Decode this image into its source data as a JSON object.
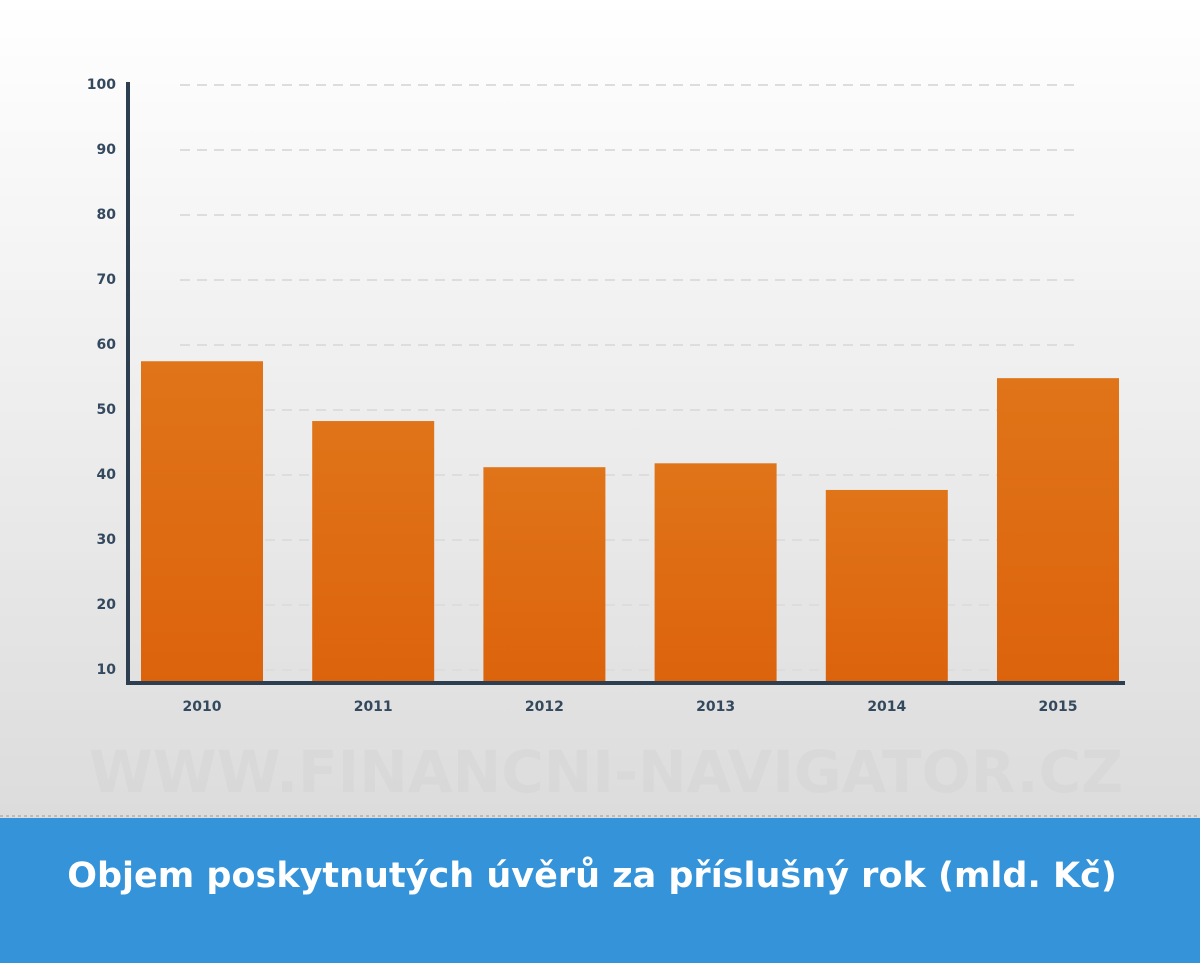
{
  "chart_data": {
    "type": "bar",
    "title": "Objem poskytnutých úvěrů za příslušný rok (mld. Kč)",
    "watermark": "WWW.FINANCNI-NAVIGATOR.CZ",
    "categories": [
      "2010",
      "2011",
      "2012",
      "2013",
      "2014",
      "2015"
    ],
    "values": [
      57.5,
      48.3,
      41.2,
      41.8,
      37.7,
      54.9
    ],
    "color": "#de6a12",
    "ylim": [
      8,
      100
    ],
    "yticks": [
      10,
      20,
      30,
      40,
      50,
      60,
      70,
      80,
      90,
      100
    ],
    "grid": true
  }
}
